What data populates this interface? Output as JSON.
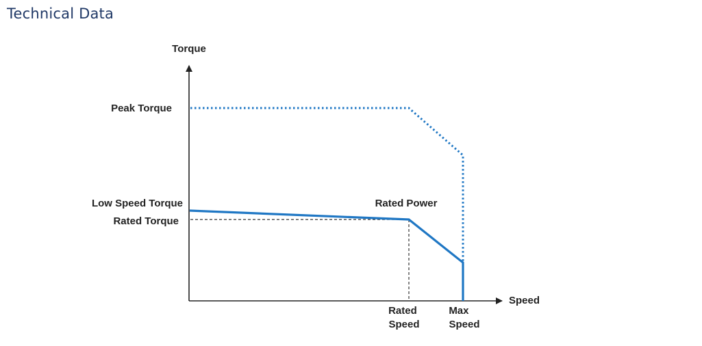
{
  "page": {
    "title": "Technical Data"
  },
  "diagram": {
    "y_axis_label": "Torque",
    "x_axis_label": "Speed",
    "peak_torque_label": "Peak Torque",
    "low_speed_torque_label": "Low Speed Torque",
    "rated_torque_label": "Rated Torque",
    "rated_power_label": "Rated Power",
    "rated_speed_label": [
      "Rated",
      "Speed"
    ],
    "max_speed_label": [
      "Max",
      "Speed"
    ],
    "colors": {
      "curve": "#1f77c4",
      "axis": "#222222",
      "guide": "#333333"
    }
  }
}
